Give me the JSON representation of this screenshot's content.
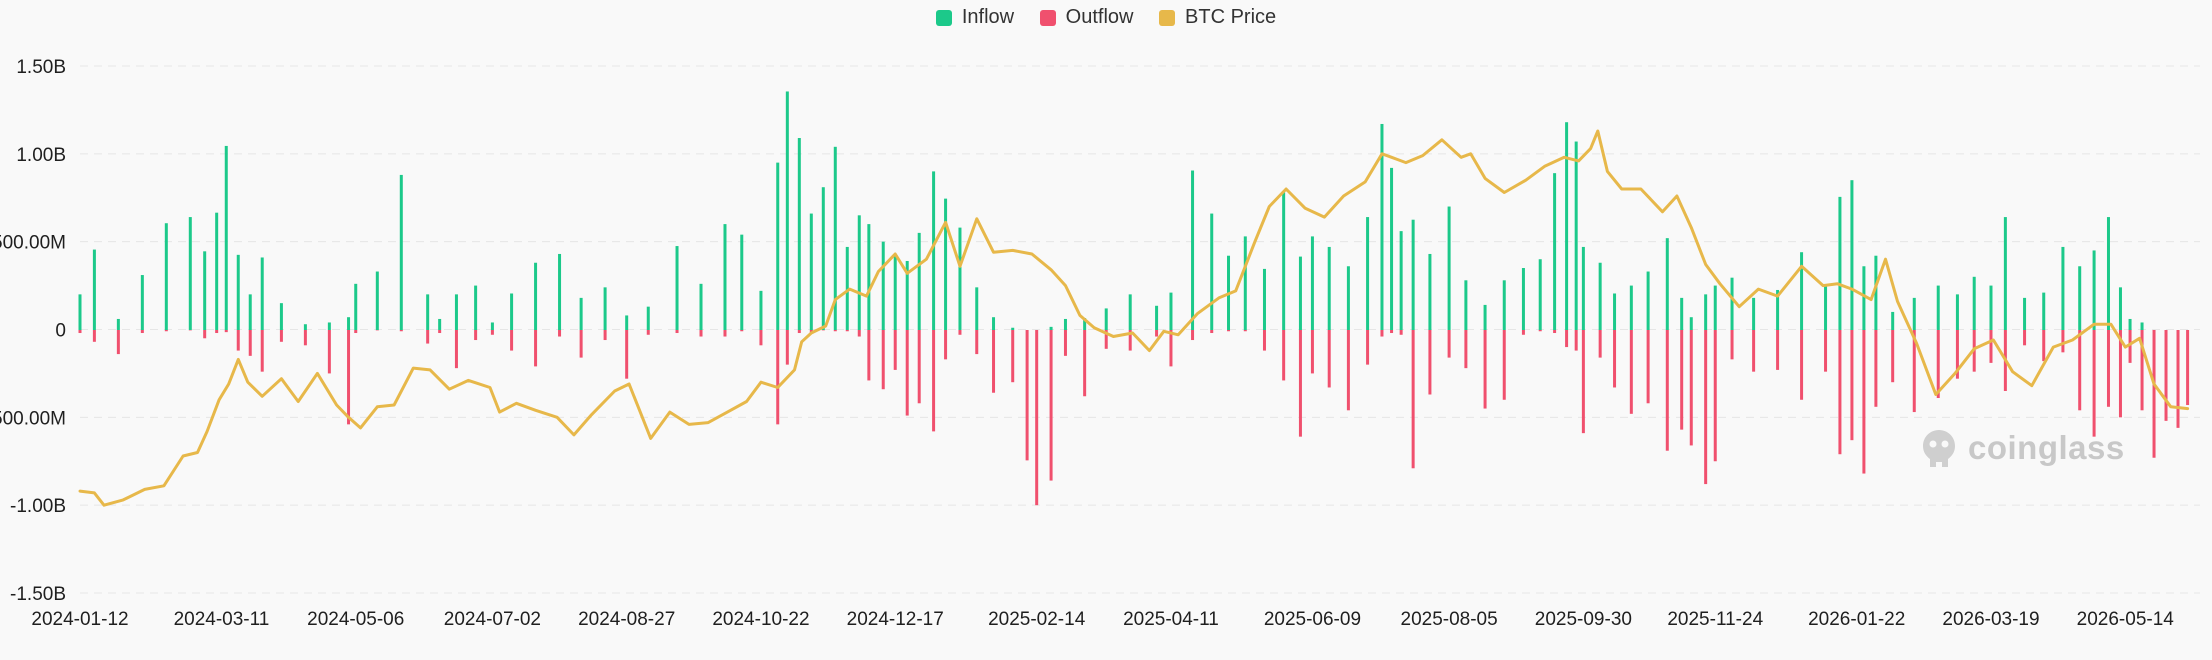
{
  "legend": {
    "inflow": {
      "label": "Inflow",
      "color": "#1cc98a"
    },
    "outflow": {
      "label": "Outflow",
      "color": "#f0506e"
    },
    "price": {
      "label": "BTC Price",
      "color": "#e7b84a"
    }
  },
  "watermark": {
    "text": "coinglass",
    "icon": "coinglass-logo-icon"
  },
  "chart_data": {
    "type": "bar",
    "title": "",
    "xlabel": "",
    "ylabel": "",
    "grid": true,
    "legend_position": "top-center",
    "ylim": [
      -1500000000,
      1500000000
    ],
    "y_ticks": [
      {
        "value": 1500000000,
        "label": "1.50B"
      },
      {
        "value": 1000000000,
        "label": "1.00B"
      },
      {
        "value": 500000000,
        "label": "500.00M"
      },
      {
        "value": 0,
        "label": "0"
      },
      {
        "value": -500000000,
        "label": "-500.00M"
      },
      {
        "value": -1000000000,
        "label": "-1.00B"
      },
      {
        "value": -1500000000,
        "label": "-1.50B"
      }
    ],
    "x_tick_labels": [
      "2024-01-12",
      "2024-03-11",
      "2024-05-06",
      "2024-07-02",
      "2024-08-27",
      "2024-10-22",
      "2024-12-17",
      "2025-02-14",
      "2025-04-11",
      "2025-06-09",
      "2025-08-05",
      "2025-09-30",
      "2025-11-24",
      "2026-01-22",
      "2026-03-19",
      "2026-05-14"
    ],
    "x_tick_dates": [
      "2024-01-12",
      "2024-03-11",
      "2024-05-06",
      "2024-07-02",
      "2024-08-27",
      "2024-10-22",
      "2024-12-17",
      "2025-02-14",
      "2025-04-11",
      "2025-06-09",
      "2025-08-05",
      "2025-09-30",
      "2025-11-24",
      "2026-01-22",
      "2026-03-19",
      "2026-05-14"
    ],
    "x_range": [
      "2024-01-12",
      "2026-06-10"
    ],
    "bar_dates": [
      "2024-01-12",
      "2024-01-18",
      "2024-01-28",
      "2024-02-07",
      "2024-02-17",
      "2024-02-27",
      "2024-03-04",
      "2024-03-09",
      "2024-03-13",
      "2024-03-18",
      "2024-03-23",
      "2024-03-28",
      "2024-04-05",
      "2024-04-15",
      "2024-04-25",
      "2024-05-03",
      "2024-05-06",
      "2024-05-15",
      "2024-05-25",
      "2024-06-05",
      "2024-06-10",
      "2024-06-17",
      "2024-06-25",
      "2024-07-02",
      "2024-07-10",
      "2024-07-20",
      "2024-07-30",
      "2024-08-08",
      "2024-08-18",
      "2024-08-27",
      "2024-09-05",
      "2024-09-17",
      "2024-09-27",
      "2024-10-07",
      "2024-10-14",
      "2024-10-22",
      "2024-10-29",
      "2024-11-02",
      "2024-11-07",
      "2024-11-12",
      "2024-11-17",
      "2024-11-22",
      "2024-11-27",
      "2024-12-02",
      "2024-12-06",
      "2024-12-12",
      "2024-12-17",
      "2024-12-22",
      "2024-12-27",
      "2025-01-02",
      "2025-01-07",
      "2025-01-13",
      "2025-01-20",
      "2025-01-27",
      "2025-02-04",
      "2025-02-10",
      "2025-02-14",
      "2025-02-20",
      "2025-02-26",
      "2025-03-06",
      "2025-03-15",
      "2025-03-25",
      "2025-04-05",
      "2025-04-11",
      "2025-04-20",
      "2025-04-28",
      "2025-05-05",
      "2025-05-12",
      "2025-05-20",
      "2025-05-28",
      "2025-06-04",
      "2025-06-09",
      "2025-06-16",
      "2025-06-24",
      "2025-07-02",
      "2025-07-08",
      "2025-07-12",
      "2025-07-16",
      "2025-07-21",
      "2025-07-28",
      "2025-08-05",
      "2025-08-12",
      "2025-08-20",
      "2025-08-28",
      "2025-09-05",
      "2025-09-12",
      "2025-09-18",
      "2025-09-23",
      "2025-09-27",
      "2025-09-30",
      "2025-10-07",
      "2025-10-13",
      "2025-10-20",
      "2025-10-27",
      "2025-11-04",
      "2025-11-10",
      "2025-11-14",
      "2025-11-20",
      "2025-11-24",
      "2025-12-01",
      "2025-12-10",
      "2025-12-20",
      "2025-12-30",
      "2026-01-09",
      "2026-01-15",
      "2026-01-20",
      "2026-01-25",
      "2026-01-30",
      "2026-02-06",
      "2026-02-15",
      "2026-02-25",
      "2026-03-05",
      "2026-03-12",
      "2026-03-19",
      "2026-03-25",
      "2026-04-02",
      "2026-04-10",
      "2026-04-18",
      "2026-04-25",
      "2026-05-01",
      "2026-05-07",
      "2026-05-12",
      "2026-05-16",
      "2026-05-21",
      "2026-05-26",
      "2026-05-31",
      "2026-06-05",
      "2026-06-09"
    ],
    "series": [
      {
        "name": "Inflow",
        "color": "#1cc98a",
        "values": [
          200000000,
          455000000,
          60000000,
          310000000,
          605000000,
          640000000,
          445000000,
          665000000,
          1045000000,
          425000000,
          200000000,
          410000000,
          150000000,
          30000000,
          40000000,
          70000000,
          260000000,
          330000000,
          880000000,
          200000000,
          60000000,
          200000000,
          250000000,
          40000000,
          205000000,
          380000000,
          430000000,
          180000000,
          240000000,
          80000000,
          130000000,
          475000000,
          260000000,
          600000000,
          540000000,
          220000000,
          950000000,
          1355000000,
          1090000000,
          660000000,
          810000000,
          1040000000,
          470000000,
          650000000,
          600000000,
          500000000,
          420000000,
          390000000,
          550000000,
          900000000,
          745000000,
          580000000,
          240000000,
          70000000,
          10000000,
          0,
          0,
          15000000,
          60000000,
          65000000,
          120000000,
          200000000,
          135000000,
          210000000,
          905000000,
          660000000,
          420000000,
          530000000,
          345000000,
          780000000,
          415000000,
          530000000,
          470000000,
          360000000,
          640000000,
          1170000000,
          920000000,
          560000000,
          625000000,
          430000000,
          700000000,
          280000000,
          140000000,
          280000000,
          350000000,
          400000000,
          890000000,
          1180000000,
          1070000000,
          470000000,
          380000000,
          205000000,
          250000000,
          330000000,
          520000000,
          180000000,
          70000000,
          200000000,
          250000000,
          295000000,
          180000000,
          225000000,
          440000000,
          250000000,
          755000000,
          850000000,
          360000000,
          420000000,
          100000000,
          180000000,
          250000000,
          200000000,
          300000000,
          250000000,
          640000000,
          180000000,
          210000000,
          470000000,
          360000000,
          450000000,
          640000000,
          240000000,
          60000000,
          40000000,
          0,
          0,
          0,
          0
        ]
      },
      {
        "name": "Outflow",
        "color": "#f0506e",
        "values": [
          -20000000,
          -70000000,
          -140000000,
          -20000000,
          -10000000,
          -5000000,
          -50000000,
          -20000000,
          -15000000,
          -120000000,
          -150000000,
          -240000000,
          -70000000,
          -90000000,
          -250000000,
          -540000000,
          -20000000,
          -5000000,
          -10000000,
          -80000000,
          -20000000,
          -220000000,
          -60000000,
          -30000000,
          -120000000,
          -210000000,
          -40000000,
          -160000000,
          -60000000,
          -280000000,
          -30000000,
          -20000000,
          -40000000,
          -40000000,
          -10000000,
          -90000000,
          -540000000,
          -200000000,
          -20000000,
          -20000000,
          -5000000,
          -10000000,
          -10000000,
          -40000000,
          -290000000,
          -340000000,
          -230000000,
          -490000000,
          -420000000,
          -580000000,
          -170000000,
          -30000000,
          -140000000,
          -360000000,
          -300000000,
          -745000000,
          -1000000000,
          -860000000,
          -150000000,
          -380000000,
          -110000000,
          -120000000,
          -40000000,
          -210000000,
          -60000000,
          -20000000,
          -10000000,
          -10000000,
          -120000000,
          -290000000,
          -610000000,
          -250000000,
          -330000000,
          -460000000,
          -200000000,
          -40000000,
          -20000000,
          -30000000,
          -790000000,
          -370000000,
          -160000000,
          -220000000,
          -450000000,
          -400000000,
          -30000000,
          -10000000,
          -20000000,
          -100000000,
          -120000000,
          -590000000,
          -160000000,
          -330000000,
          -480000000,
          -420000000,
          -690000000,
          -570000000,
          -660000000,
          -880000000,
          -750000000,
          -170000000,
          -240000000,
          -230000000,
          -400000000,
          -240000000,
          -710000000,
          -630000000,
          -820000000,
          -440000000,
          -300000000,
          -470000000,
          -390000000,
          -280000000,
          -240000000,
          -190000000,
          -350000000,
          -90000000,
          -180000000,
          -130000000,
          -460000000,
          -610000000,
          -440000000,
          -500000000,
          -190000000,
          -460000000,
          -730000000,
          -520000000,
          -560000000,
          -430000000
        ]
      },
      {
        "name": "BTC Price",
        "color": "#e7b84a",
        "dates": [
          "2024-01-12",
          "2024-01-18",
          "2024-01-22",
          "2024-01-30",
          "2024-02-08",
          "2024-02-16",
          "2024-02-24",
          "2024-03-01",
          "2024-03-05",
          "2024-03-10",
          "2024-03-14",
          "2024-03-18",
          "2024-03-22",
          "2024-03-28",
          "2024-04-05",
          "2024-04-12",
          "2024-04-20",
          "2024-04-28",
          "2024-05-03",
          "2024-05-08",
          "2024-05-15",
          "2024-05-22",
          "2024-05-30",
          "2024-06-06",
          "2024-06-14",
          "2024-06-22",
          "2024-07-01",
          "2024-07-05",
          "2024-07-12",
          "2024-07-20",
          "2024-07-29",
          "2024-08-05",
          "2024-08-12",
          "2024-08-22",
          "2024-08-28",
          "2024-09-06",
          "2024-09-14",
          "2024-09-22",
          "2024-09-30",
          "2024-10-08",
          "2024-10-16",
          "2024-10-22",
          "2024-10-29",
          "2024-11-05",
          "2024-11-08",
          "2024-11-12",
          "2024-11-18",
          "2024-11-22",
          "2024-11-28",
          "2024-12-05",
          "2024-12-10",
          "2024-12-17",
          "2024-12-22",
          "2024-12-30",
          "2025-01-07",
          "2025-01-13",
          "2025-01-20",
          "2025-01-27",
          "2025-02-04",
          "2025-02-12",
          "2025-02-20",
          "2025-02-26",
          "2025-03-04",
          "2025-03-10",
          "2025-03-18",
          "2025-03-26",
          "2025-04-02",
          "2025-04-08",
          "2025-04-14",
          "2025-04-22",
          "2025-05-01",
          "2025-05-08",
          "2025-05-16",
          "2025-05-22",
          "2025-05-29",
          "2025-06-06",
          "2025-06-14",
          "2025-06-22",
          "2025-07-01",
          "2025-07-08",
          "2025-07-12",
          "2025-07-18",
          "2025-07-25",
          "2025-08-02",
          "2025-08-10",
          "2025-08-14",
          "2025-08-20",
          "2025-08-28",
          "2025-09-06",
          "2025-09-14",
          "2025-09-22",
          "2025-09-28",
          "2025-10-03",
          "2025-10-06",
          "2025-10-10",
          "2025-10-16",
          "2025-10-24",
          "2025-11-02",
          "2025-11-08",
          "2025-11-14",
          "2025-11-20",
          "2025-11-26",
          "2025-12-04",
          "2025-12-12",
          "2025-12-20",
          "2025-12-30",
          "2026-01-08",
          "2026-01-14",
          "2026-01-20",
          "2026-01-28",
          "2026-02-03",
          "2026-02-08",
          "2026-02-16",
          "2026-02-24",
          "2026-03-04",
          "2026-03-12",
          "2026-03-20",
          "2026-03-28",
          "2026-04-05",
          "2026-04-14",
          "2026-04-22",
          "2026-05-01",
          "2026-05-08",
          "2026-05-14",
          "2026-05-20",
          "2026-05-26",
          "2026-06-02",
          "2026-06-09"
        ],
        "values": [
          -920000000,
          -930000000,
          -1000000000,
          -970000000,
          -910000000,
          -890000000,
          -720000000,
          -700000000,
          -580000000,
          -400000000,
          -310000000,
          -170000000,
          -300000000,
          -380000000,
          -280000000,
          -410000000,
          -250000000,
          -430000000,
          -500000000,
          -560000000,
          -440000000,
          -430000000,
          -220000000,
          -230000000,
          -340000000,
          -290000000,
          -330000000,
          -470000000,
          -420000000,
          -460000000,
          -500000000,
          -600000000,
          -490000000,
          -350000000,
          -310000000,
          -620000000,
          -470000000,
          -540000000,
          -530000000,
          -470000000,
          -410000000,
          -300000000,
          -330000000,
          -230000000,
          -70000000,
          -20000000,
          20000000,
          170000000,
          230000000,
          190000000,
          330000000,
          430000000,
          320000000,
          400000000,
          610000000,
          360000000,
          630000000,
          440000000,
          450000000,
          430000000,
          340000000,
          250000000,
          80000000,
          10000000,
          -40000000,
          -20000000,
          -120000000,
          -10000000,
          -30000000,
          90000000,
          180000000,
          220000000,
          500000000,
          700000000,
          800000000,
          690000000,
          640000000,
          760000000,
          840000000,
          1000000000,
          980000000,
          950000000,
          990000000,
          1080000000,
          980000000,
          1000000000,
          860000000,
          780000000,
          850000000,
          930000000,
          980000000,
          960000000,
          1030000000,
          1130000000,
          900000000,
          800000000,
          800000000,
          670000000,
          760000000,
          580000000,
          370000000,
          260000000,
          130000000,
          230000000,
          190000000,
          360000000,
          250000000,
          260000000,
          230000000,
          170000000,
          400000000,
          160000000,
          -80000000,
          -370000000,
          -250000000,
          -110000000,
          -60000000,
          -240000000,
          -320000000,
          -100000000,
          -60000000,
          30000000,
          30000000,
          -100000000,
          -50000000,
          -310000000,
          -440000000,
          -450000000
        ]
      }
    ]
  }
}
